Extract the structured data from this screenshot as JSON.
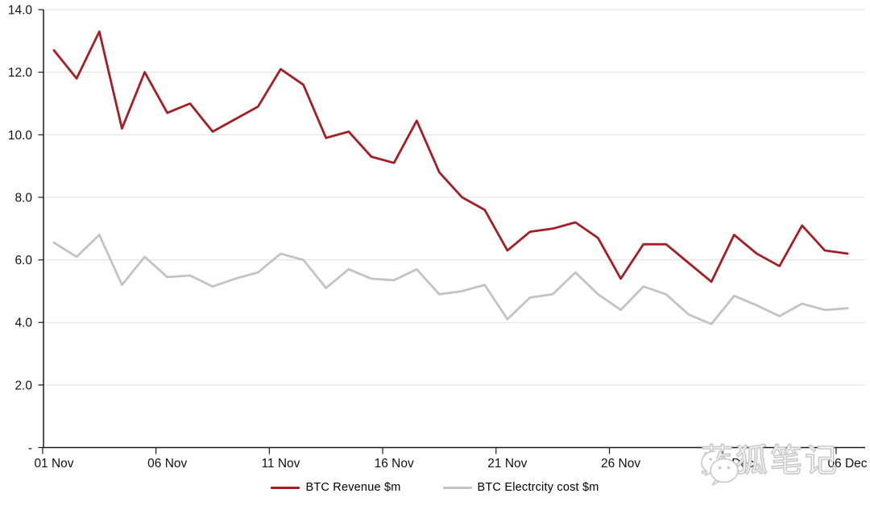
{
  "watermark": {
    "text": "蓝狐笔记",
    "icon": "wechat-icon"
  },
  "chart_data": {
    "type": "line",
    "title": "",
    "xlabel": "",
    "ylabel": "",
    "grid": true,
    "legend_position": "bottom",
    "ylim": [
      0,
      14
    ],
    "yticks": [
      0,
      2,
      4,
      6,
      8,
      10,
      12,
      14
    ],
    "ytick_labels": [
      "-",
      "2.0",
      "4.0",
      "6.0",
      "8.0",
      "10.0",
      "12.0",
      "14.0"
    ],
    "xtick_labels": [
      "01 Nov",
      "06 Nov",
      "11 Nov",
      "16 Nov",
      "21 Nov",
      "26 Nov",
      "01 Dec",
      "06 Dec"
    ],
    "xtick_every": 5,
    "categories": [
      "01 Nov",
      "02 Nov",
      "03 Nov",
      "04 Nov",
      "05 Nov",
      "06 Nov",
      "07 Nov",
      "08 Nov",
      "09 Nov",
      "10 Nov",
      "11 Nov",
      "12 Nov",
      "13 Nov",
      "14 Nov",
      "15 Nov",
      "16 Nov",
      "17 Nov",
      "18 Nov",
      "19 Nov",
      "20 Nov",
      "21 Nov",
      "22 Nov",
      "23 Nov",
      "24 Nov",
      "25 Nov",
      "26 Nov",
      "27 Nov",
      "28 Nov",
      "29 Nov",
      "30 Nov",
      "01 Dec",
      "02 Dec",
      "03 Dec",
      "04 Dec",
      "05 Dec",
      "06 Dec"
    ],
    "series": [
      {
        "name": "BTC Revenue $m",
        "color": "#a51e23",
        "values": [
          12.7,
          11.8,
          13.3,
          10.2,
          12.0,
          10.7,
          11.0,
          10.1,
          10.5,
          10.9,
          12.1,
          11.6,
          9.9,
          10.1,
          9.3,
          9.1,
          10.45,
          8.8,
          8.0,
          7.6,
          6.3,
          6.9,
          7.0,
          7.2,
          6.7,
          5.4,
          6.5,
          6.5,
          5.9,
          5.3,
          6.8,
          6.2,
          5.8,
          7.1,
          6.3,
          6.2
        ]
      },
      {
        "name": "BTC Electrcity cost $m",
        "color": "#c3c3c3",
        "values": [
          6.55,
          6.1,
          6.8,
          5.2,
          6.1,
          5.45,
          5.5,
          5.15,
          5.4,
          5.6,
          6.2,
          6.0,
          5.1,
          5.7,
          5.4,
          5.35,
          5.7,
          4.9,
          5.0,
          5.2,
          4.1,
          4.8,
          4.9,
          5.6,
          4.9,
          4.4,
          5.15,
          4.9,
          4.25,
          3.95,
          4.85,
          4.55,
          4.2,
          4.6,
          4.4,
          4.45
        ]
      }
    ]
  }
}
